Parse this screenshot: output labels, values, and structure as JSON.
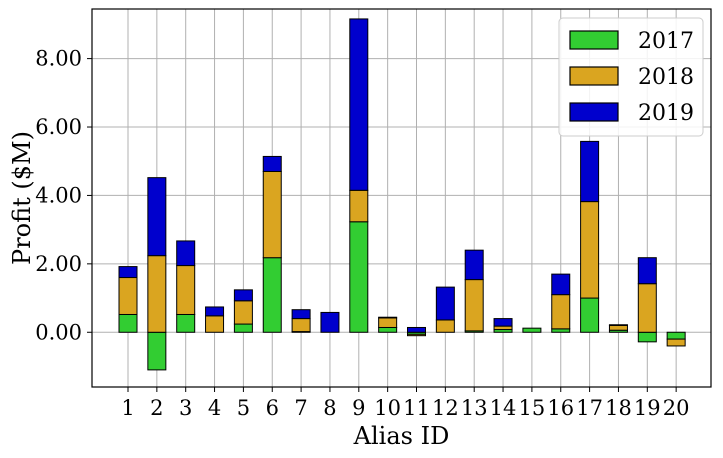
{
  "chart_data": {
    "type": "bar",
    "stacked": true,
    "xlabel": "Alias ID",
    "ylabel": "Profit ($M)",
    "categories": [
      "1",
      "2",
      "3",
      "4",
      "5",
      "6",
      "7",
      "8",
      "9",
      "10",
      "11",
      "12",
      "13",
      "14",
      "15",
      "16",
      "17",
      "18",
      "19",
      "20"
    ],
    "ylim": [
      -1.6,
      9.45
    ],
    "yticks": [
      0,
      2,
      4,
      6,
      8
    ],
    "ytick_labels": [
      "0.00",
      "2.00",
      "4.00",
      "6.00",
      "8.00"
    ],
    "grid": true,
    "legend": {
      "position": "top-right"
    },
    "series": [
      {
        "name": "2017",
        "color": "#32cd32",
        "values": [
          0.52,
          -1.1,
          0.52,
          0.0,
          0.24,
          2.18,
          0.02,
          0.0,
          3.23,
          0.14,
          -0.06,
          0.0,
          0.04,
          0.08,
          0.12,
          0.1,
          1.0,
          0.06,
          -0.28,
          -0.2
        ]
      },
      {
        "name": "2018",
        "color": "#daa520",
        "values": [
          1.08,
          2.24,
          1.43,
          0.48,
          0.68,
          2.52,
          0.38,
          0.0,
          0.92,
          0.28,
          -0.04,
          0.36,
          1.5,
          0.1,
          0.0,
          1.0,
          2.82,
          0.14,
          1.42,
          -0.2
        ]
      },
      {
        "name": "2019",
        "color": "#0000cd",
        "values": [
          0.32,
          2.28,
          0.72,
          0.26,
          0.32,
          0.44,
          0.26,
          0.58,
          5.01,
          0.02,
          0.14,
          0.96,
          0.86,
          0.22,
          0.0,
          0.6,
          1.76,
          0.02,
          0.76,
          0.0
        ]
      }
    ]
  }
}
